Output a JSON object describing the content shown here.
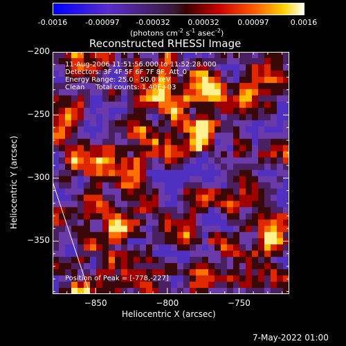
{
  "colorbar": {
    "tick_labels": [
      "-0.0016",
      "-0.00097",
      "-0.00032",
      "0.00032",
      "0.00097",
      "0.0016"
    ],
    "units_main": "(photons cm",
    "units_sup1": "-2",
    "units_mid1": " s",
    "units_sup2": "-1",
    "units_mid2": " asec",
    "units_sup3": "-2",
    "units_end": ")"
  },
  "chart_data": {
    "type": "heatmap",
    "title": "Reconstructed RHESSI Image",
    "xlabel": "Heliocentric X (arcsec)",
    "ylabel": "Heliocentric Y (arcsec)",
    "xlim": [
      -880,
      -715
    ],
    "ylim": [
      -392,
      -200
    ],
    "x_ticks": [
      -850,
      -800,
      -750
    ],
    "y_ticks": [
      -200,
      -250,
      -300,
      -350
    ],
    "x_tick_labels": [
      "−850",
      "−800",
      "−750"
    ],
    "y_tick_labels": [
      "−200",
      "−250",
      "−300",
      "−350"
    ],
    "colorscale_range": [
      -0.0016,
      0.0016
    ],
    "peak_position": [
      -778,
      -227
    ],
    "annotations": [
      "11-Aug-2006 11:51:56.000 to 11:52:28.000",
      "Detectors: 3F 4F 5F 6F 7F 8F, Att_0",
      "Energy Range: 25.0 - 50.0 keV",
      "Clean     Total counts: 1.40E+03",
      "Position of Peak = [-778,-227]"
    ]
  },
  "footer": {
    "date": "7-May-2022 01:00"
  }
}
